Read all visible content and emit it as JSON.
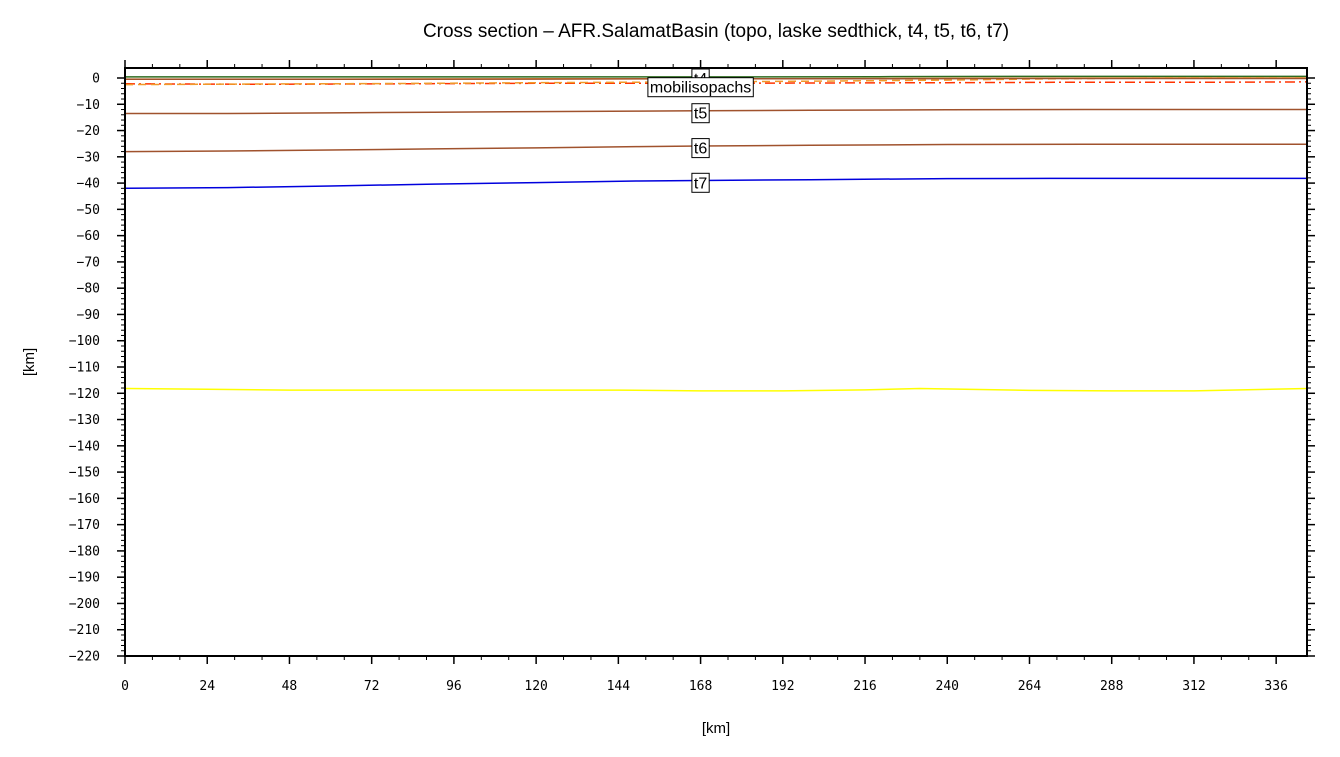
{
  "chart_data": {
    "type": "line",
    "title": "Cross section – AFR.SalamatBasin (topo, laske sedthick, t4, t5, t6, t7)",
    "xlabel": "[km]",
    "ylabel": "[km]",
    "xlim": [
      0,
      345
    ],
    "ylim": [
      -220,
      2
    ],
    "x_ticks": [
      0,
      24,
      48,
      72,
      96,
      120,
      144,
      168,
      192,
      216,
      240,
      264,
      288,
      312,
      336
    ],
    "y_ticks": [
      0,
      -10,
      -20,
      -30,
      -40,
      -50,
      -60,
      -70,
      -80,
      -90,
      -100,
      -110,
      -120,
      -130,
      -140,
      -150,
      -160,
      -170,
      -180,
      -190,
      -200,
      -210,
      -220
    ],
    "tick_labels": {
      "x": [
        "0",
        "24",
        "48",
        "72",
        "96",
        "120",
        "144",
        "168",
        "192",
        "216",
        "240",
        "264",
        "288",
        "312",
        "336"
      ],
      "y": [
        "0",
        "−10",
        "−20",
        "−30",
        "−40",
        "−50",
        "−60",
        "−70",
        "−80",
        "−90",
        "−100",
        "−110",
        "−120",
        "−130",
        "−140",
        "−150",
        "−160",
        "−170",
        "−180",
        "−190",
        "−200",
        "−210",
        "−220"
      ]
    },
    "grid": false,
    "series": [
      {
        "color": "#2e6b1f",
        "style": "solid",
        "x": [
          0,
          60,
          120,
          168,
          220,
          260,
          300,
          345
        ],
        "y": [
          0.4,
          0.4,
          0.4,
          0.4,
          0.5,
          0.6,
          0.6,
          0.6
        ]
      },
      {
        "color": "#f09a2a",
        "style": "solid",
        "x": [
          0,
          60,
          120,
          168,
          220,
          260,
          300,
          345
        ],
        "y": [
          -0.4,
          -0.4,
          -0.3,
          -0.3,
          -0.2,
          -0.1,
          0,
          0
        ]
      },
      {
        "color": "#ff3300",
        "style": "dashdot",
        "x": [
          0,
          40,
          80,
          120,
          168,
          200,
          240,
          280,
          320,
          345
        ],
        "y": [
          -2.2,
          -2.4,
          -2.2,
          -2.0,
          -2.0,
          -1.9,
          -1.8,
          -1.6,
          -1.6,
          -1.5
        ]
      },
      {
        "color": "#f09a2a",
        "style": "dashed",
        "x": [
          0,
          40,
          80,
          120,
          168,
          200,
          240,
          270,
          300,
          345
        ],
        "y": [
          -2.5,
          -2.3,
          -2.1,
          -1.8,
          -1.5,
          -1.2,
          -0.8,
          -0.3,
          0,
          0
        ]
      },
      {
        "name": "t4",
        "color": "#a0522d",
        "style": "solid",
        "x": [
          0,
          60,
          120,
          168,
          220,
          260,
          300,
          345
        ],
        "y": [
          -0.5,
          -0.5,
          -0.4,
          -0.3,
          -0.3,
          -0.2,
          -0.2,
          -0.2
        ]
      },
      {
        "name": "t5",
        "color": "#a0522d",
        "style": "solid",
        "x": [
          0,
          30,
          60,
          90,
          120,
          150,
          168,
          200,
          240,
          280,
          320,
          345
        ],
        "y": [
          -13.5,
          -13.5,
          -13.3,
          -13.0,
          -12.8,
          -12.6,
          -12.5,
          -12.3,
          -12.1,
          -12.0,
          -12.0,
          -12.0
        ]
      },
      {
        "name": "t6",
        "color": "#a0522d",
        "style": "solid",
        "x": [
          0,
          30,
          60,
          90,
          120,
          150,
          168,
          200,
          240,
          280,
          320,
          345
        ],
        "y": [
          -28.0,
          -27.8,
          -27.4,
          -27.0,
          -26.6,
          -26.1,
          -25.9,
          -25.6,
          -25.3,
          -25.2,
          -25.2,
          -25.2
        ]
      },
      {
        "name": "t7",
        "color": "#0000dd",
        "style": "solid",
        "x": [
          0,
          30,
          60,
          90,
          120,
          150,
          168,
          200,
          240,
          270,
          300,
          345
        ],
        "y": [
          -42.0,
          -41.7,
          -41.1,
          -40.4,
          -39.8,
          -39.2,
          -39.0,
          -38.7,
          -38.3,
          -38.2,
          -38.2,
          -38.2
        ]
      },
      {
        "color": "#ffff00",
        "style": "solid",
        "x": [
          0,
          24,
          48,
          96,
          144,
          168,
          192,
          216,
          232,
          264,
          288,
          312,
          345
        ],
        "y": [
          -118.2,
          -118.5,
          -118.8,
          -118.8,
          -118.8,
          -119.1,
          -119.1,
          -118.7,
          -118.2,
          -118.9,
          -119.1,
          -119.1,
          -118.2
        ]
      }
    ],
    "annotations": [
      {
        "text": "t4",
        "x": 168,
        "y": 0
      },
      {
        "text": "mobilisopachs",
        "x": 168,
        "y": -3.3
      },
      {
        "text": "t5",
        "x": 168,
        "y": -13.2
      },
      {
        "text": "t6",
        "x": 168,
        "y": -26.5
      },
      {
        "text": "t7",
        "x": 168,
        "y": -39.7
      }
    ]
  }
}
